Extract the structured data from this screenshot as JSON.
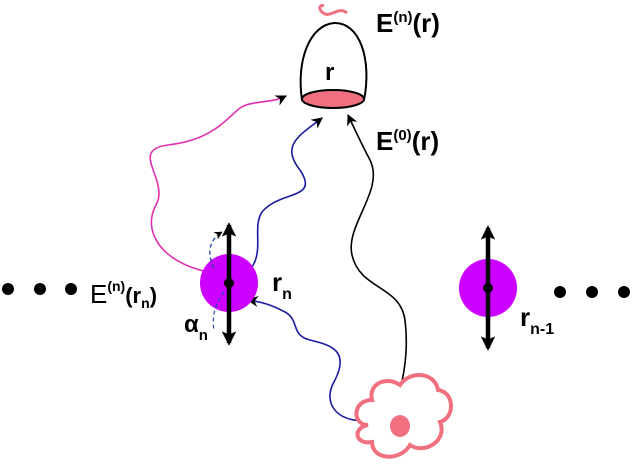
{
  "labels": {
    "detector_field": {
      "main": "E",
      "sup": "(n)",
      "arg": "(r)"
    },
    "detector_point": "r",
    "incident_field": {
      "main": "E",
      "sup": "(0)",
      "arg": "(r)"
    },
    "field_at_dipole": {
      "main": "E",
      "sup": "(n)",
      "arg_open": "(r",
      "sub": "n",
      "arg_close": ")"
    },
    "alpha": {
      "main": "α",
      "sub": "n"
    },
    "dipole_n": {
      "main": "r",
      "sub": "n"
    },
    "dipole_n_minus_1": {
      "main": "r",
      "sub": "n-1"
    }
  },
  "colors": {
    "dipole": "#cc00ff",
    "source": "#f07080",
    "detector_cap": "#f07080",
    "scattered_path": "#e030b0",
    "incident_path": "#1a1aa0",
    "direct_path": "#000000",
    "polarizability_arrow": "#2a4aa8"
  },
  "icons": {
    "detector": "detector-cup-icon",
    "source": "cloud-source-icon",
    "dipole": "dipole-particle-icon"
  }
}
